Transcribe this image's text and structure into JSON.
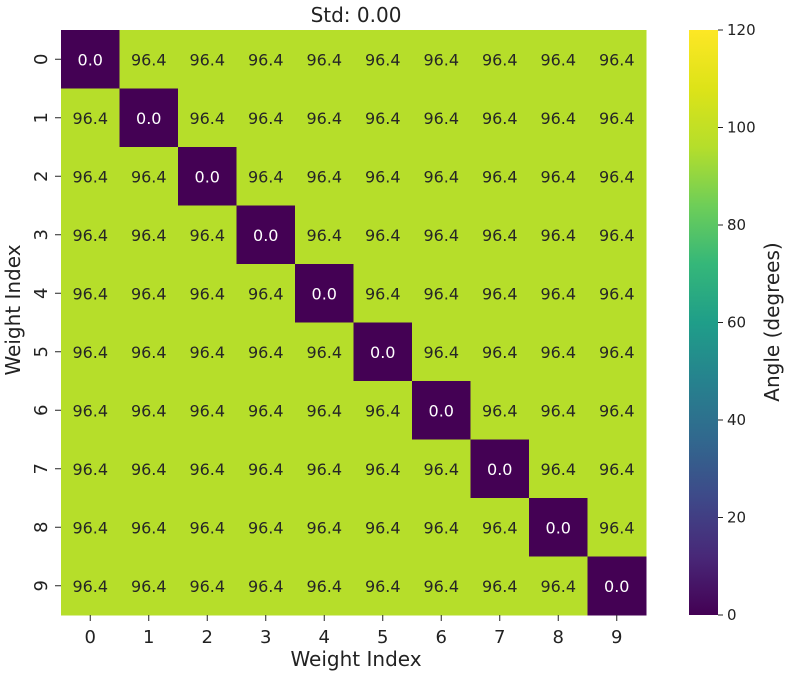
{
  "chart_data": {
    "type": "heatmap",
    "title": "Std: 0.00",
    "xlabel": "Weight Index",
    "ylabel": "Weight Index",
    "x_categories": [
      "0",
      "1",
      "2",
      "3",
      "4",
      "5",
      "6",
      "7",
      "8",
      "9"
    ],
    "y_categories": [
      "0",
      "1",
      "2",
      "3",
      "4",
      "5",
      "6",
      "7",
      "8",
      "9"
    ],
    "values": [
      [
        0.0,
        96.4,
        96.4,
        96.4,
        96.4,
        96.4,
        96.4,
        96.4,
        96.4,
        96.4
      ],
      [
        96.4,
        0.0,
        96.4,
        96.4,
        96.4,
        96.4,
        96.4,
        96.4,
        96.4,
        96.4
      ],
      [
        96.4,
        96.4,
        0.0,
        96.4,
        96.4,
        96.4,
        96.4,
        96.4,
        96.4,
        96.4
      ],
      [
        96.4,
        96.4,
        96.4,
        0.0,
        96.4,
        96.4,
        96.4,
        96.4,
        96.4,
        96.4
      ],
      [
        96.4,
        96.4,
        96.4,
        96.4,
        0.0,
        96.4,
        96.4,
        96.4,
        96.4,
        96.4
      ],
      [
        96.4,
        96.4,
        96.4,
        96.4,
        96.4,
        0.0,
        96.4,
        96.4,
        96.4,
        96.4
      ],
      [
        96.4,
        96.4,
        96.4,
        96.4,
        96.4,
        96.4,
        0.0,
        96.4,
        96.4,
        96.4
      ],
      [
        96.4,
        96.4,
        96.4,
        96.4,
        96.4,
        96.4,
        96.4,
        0.0,
        96.4,
        96.4
      ],
      [
        96.4,
        96.4,
        96.4,
        96.4,
        96.4,
        96.4,
        96.4,
        96.4,
        0.0,
        96.4
      ],
      [
        96.4,
        96.4,
        96.4,
        96.4,
        96.4,
        96.4,
        96.4,
        96.4,
        96.4,
        0.0
      ]
    ],
    "value_format_decimals": 1,
    "colormap": "viridis",
    "colorbar": {
      "label": "Angle (degrees)",
      "range": [
        0,
        120
      ],
      "ticks": [
        "0",
        "20",
        "40",
        "60",
        "80",
        "100",
        "120"
      ]
    }
  }
}
